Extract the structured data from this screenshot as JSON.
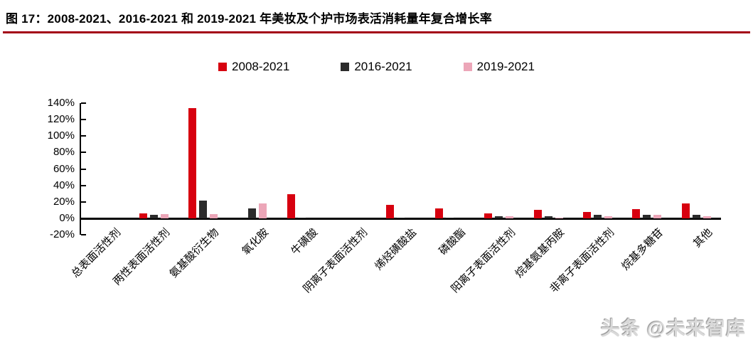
{
  "header": {
    "title": "图 17：2008-2021、2016-2021 和 2019-2021 年美妆及个护市场表活消耗量年复合增长率"
  },
  "watermark": {
    "text": "头条 @未来智库"
  },
  "colors": {
    "series_red": "#d7000f",
    "series_dark": "#2b2b2b",
    "series_pink": "#eca6b8",
    "title_rule": "#a30017",
    "axis": "#000000"
  },
  "chart_data": {
    "type": "bar",
    "title": "2008-2021、2016-2021 和 2019-2021 年美妆及个护市场表活消耗量年复合增长率",
    "categories": [
      "总表面活性剂",
      "两性表面活性剂",
      "氨基酸衍生物",
      "氧化胺",
      "牛磺酸",
      "阴离子表面活性剂",
      "烯烃磺酸盐",
      "磷酸酯",
      "阳离子表面活性剂",
      "烷基氨基丙胺",
      "非离子表面活性剂",
      "烷基多糖苷",
      "其他"
    ],
    "series": [
      {
        "name": "2008-2021",
        "color": "#d7000f",
        "values": [
          0,
          6,
          134,
          0,
          29,
          0,
          16,
          12,
          6,
          10,
          8,
          11,
          18
        ]
      },
      {
        "name": "2016-2021",
        "color": "#2b2b2b",
        "values": [
          0,
          4,
          22,
          12,
          1,
          0,
          1,
          1,
          3,
          3,
          4,
          4,
          4
        ]
      },
      {
        "name": "2019-2021",
        "color": "#eca6b8",
        "values": [
          0,
          5,
          5,
          18,
          0,
          0,
          0,
          0,
          3,
          1,
          3,
          4,
          3
        ]
      }
    ],
    "xlabel": "",
    "ylabel": "",
    "y_ticks": [
      "140%",
      "120%",
      "100%",
      "80%",
      "60%",
      "40%",
      "20%",
      "0%",
      "-20%"
    ],
    "ylim": [
      -20,
      140
    ],
    "grid": false,
    "legend_position": "top"
  }
}
